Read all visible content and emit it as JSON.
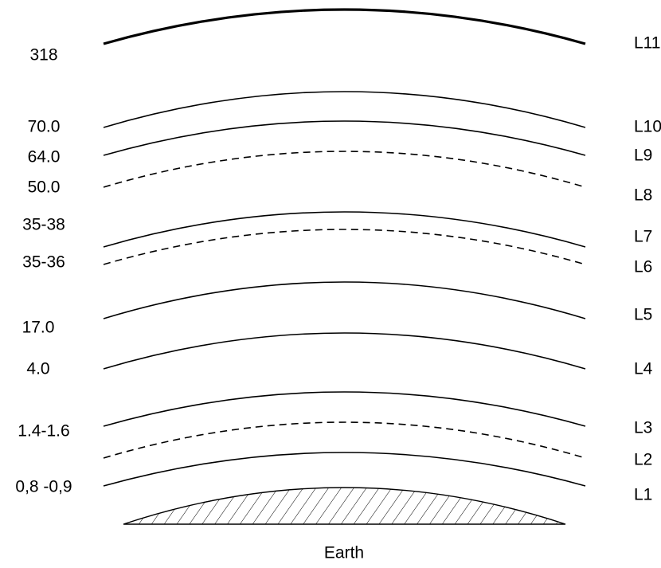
{
  "left_labels": [
    "318",
    "70.0",
    "64.0",
    "50.0",
    "35-38",
    "35-36",
    "17.0",
    "4.0",
    "1.4-1.6",
    "0,8 -0,9"
  ],
  "right_labels": [
    "L11",
    "L10",
    "L9",
    "L8",
    "L7",
    "L6",
    "L5",
    "L4",
    "L3",
    "L2",
    "L1"
  ],
  "earth_label": "Earth"
}
